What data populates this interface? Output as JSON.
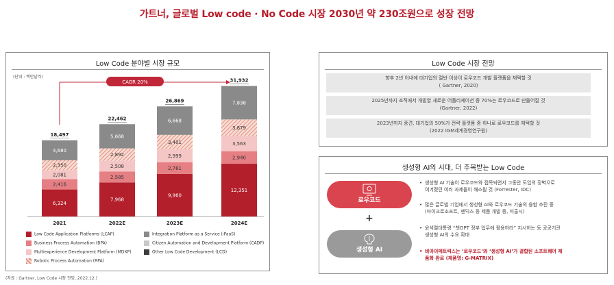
{
  "page": {
    "title": "가트너, 글로벌 Low code · No Code 시장 2030년 약 230조원으로 성장 전망"
  },
  "left_panel": {
    "title": "Low Code 분야별 시장 규모",
    "unit": "(단위 : 백만달러)",
    "cagr_label": "CAGR 20%",
    "footnote": "(자료 : Gartner, Low Code 시장 전망, 2022.12.)"
  },
  "chart_data": {
    "type": "bar",
    "stacked": true,
    "categories": [
      "2021",
      "2022E",
      "2023E",
      "2024E"
    ],
    "totals": [
      18497,
      22462,
      26869,
      31932
    ],
    "total_labels": [
      "18,497",
      "22,462",
      "26,869",
      "31,932"
    ],
    "series": [
      {
        "name": "Low Code Application Platforms (LCAP)",
        "color": "#b31f2b",
        "pattern": "solid",
        "values": [
          6324,
          7968,
          9960,
          12351
        ],
        "labels": [
          "6,324",
          "7,968",
          "9,960",
          "12,351"
        ]
      },
      {
        "name": "Business Process Automation (BPA)",
        "color": "#e57f84",
        "pattern": "solid",
        "values": [
          2416,
          2585,
          2761,
          2940
        ],
        "labels": [
          "2,416",
          "2,585",
          "2,761",
          "2,940"
        ]
      },
      {
        "name": "Multiexperience Development Platform (MDXP)",
        "color": "#f5c6c6",
        "pattern": "solid",
        "values": [
          2081,
          2508,
          2999,
          3563
        ],
        "labels": [
          "2,081",
          "2,508",
          "2,999",
          "3,563"
        ]
      },
      {
        "name": "Robotic Process Automation (RPA)",
        "color": "#e8a090",
        "pattern": "hatch",
        "values": [
          2350,
          2892,
          3401,
          3879
        ],
        "labels": [
          "2,350",
          "2,892",
          "3,401",
          "3,879"
        ]
      },
      {
        "name": "Integration Platform as a Service (iPaaS)",
        "color": "#8a8a8a",
        "pattern": "solid",
        "values": [
          4680,
          5668,
          6668,
          7838
        ],
        "labels": [
          "4,680",
          "5,668",
          "6,668",
          "7,838"
        ]
      },
      {
        "name": "Citizen Automation and Development Platform (CADP)",
        "color": "#c9c9c9",
        "pattern": "solid",
        "values": [
          null,
          null,
          null,
          null
        ],
        "labels": [
          "",
          "",
          "",
          ""
        ]
      },
      {
        "name": "Other Low Code Development (LCD)",
        "color": "#3d3d3d",
        "pattern": "solid",
        "values": [
          null,
          null,
          null,
          null
        ],
        "labels": [
          "",
          "",
          "",
          ""
        ]
      }
    ]
  },
  "outlook": {
    "title": "Low Code 시장 전망",
    "rows": [
      {
        "text": "향후 2년 이내에 대기업의 절반 이상이 로우코드 개발 플랫폼을 채택할 것",
        "source": "( Gartner, 2020)"
      },
      {
        "text": "2025년까지 조직에서 개발할 새로운 어플리케이션 중 70%는 로우코드로 만들어질 것",
        "source": "(Gartner, 2022)"
      },
      {
        "text": "2023년까지 중견, 대기업의 50%가 전략 플랫폼 중 하나로 로우코드를 채택할 것",
        "source": "(2022 IGM세계경영연구원)"
      }
    ]
  },
  "genai": {
    "title": "생성형 AI의 시대, 더 주목받는 Low Code",
    "pill_lowcode": "로우코드",
    "pill_genai": "생성형 AI",
    "plus": "+",
    "bullet_dot": "•",
    "bullets": [
      {
        "lines": [
          "생성형 AI 기술이 로우코드와 접목되면서 그동안 도입의 장벽으로",
          "여겨졌던 여러 과제들이 해소될 것 (Forrester, IDC)"
        ]
      },
      {
        "lines": [
          "많은 글로벌 기업에서 생성형 AI와 로우코드 기술의 융합 추진 중",
          "(마이크로소프트, 멘딕스 등 제품 개발 중, 미출시)"
        ]
      },
      {
        "lines": [
          "윤석렬대통령 “챗GPT 정부 업무에 활용하라” 지시하는 등 공공기관",
          "생성형 AI의 수요 확대"
        ]
      },
      {
        "lines": [
          "비아이매트릭스는 ‘로우코드’와 ‘생성형 AI’가 결합된 소프트웨어 제",
          "품화 완료 (제품명: G-MATRIX)"
        ]
      }
    ]
  }
}
